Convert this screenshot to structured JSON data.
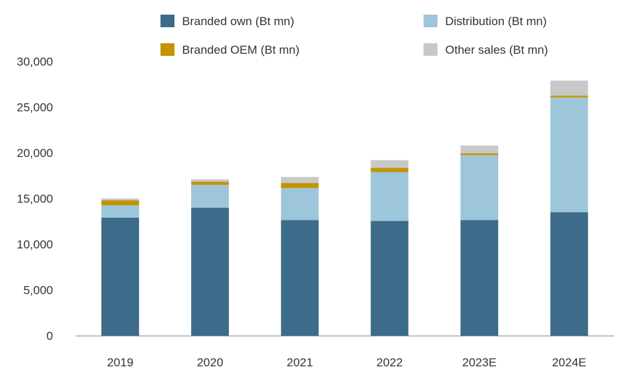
{
  "chart_data": {
    "type": "bar",
    "stacked": true,
    "title": "",
    "xlabel": "",
    "ylabel": "",
    "categories": [
      "2019",
      "2020",
      "2021",
      "2022",
      "2023E",
      "2024E"
    ],
    "ylim": [
      0,
      30000
    ],
    "yticks": [
      0,
      5000,
      10000,
      15000,
      20000,
      25000,
      30000
    ],
    "ytick_labels": [
      "0",
      "5,000",
      "10,000",
      "15,000",
      "20,000",
      "25,000",
      "30,000"
    ],
    "grid": false,
    "legend_position": "top",
    "series": [
      {
        "name": "Branded own (Bt mn)",
        "color": "#3d6b8a",
        "values": [
          12900,
          14000,
          12650,
          12550,
          12650,
          13500
        ]
      },
      {
        "name": "Distribution (Bt mn)",
        "color": "#9ec6da",
        "values": [
          1350,
          2500,
          3500,
          5350,
          7100,
          12550
        ]
      },
      {
        "name": "Branded OEM (Bt mn)",
        "color": "#c39300",
        "values": [
          550,
          350,
          550,
          450,
          200,
          200
        ]
      },
      {
        "name": "Other sales (Bt mn)",
        "color": "#c8c8c8",
        "values": [
          200,
          250,
          650,
          850,
          850,
          1650
        ]
      }
    ],
    "legend_layout": [
      [
        "Branded own (Bt mn)",
        "Distribution (Bt mn)"
      ],
      [
        "Branded OEM (Bt mn)",
        "Other sales (Bt mn)"
      ]
    ]
  }
}
